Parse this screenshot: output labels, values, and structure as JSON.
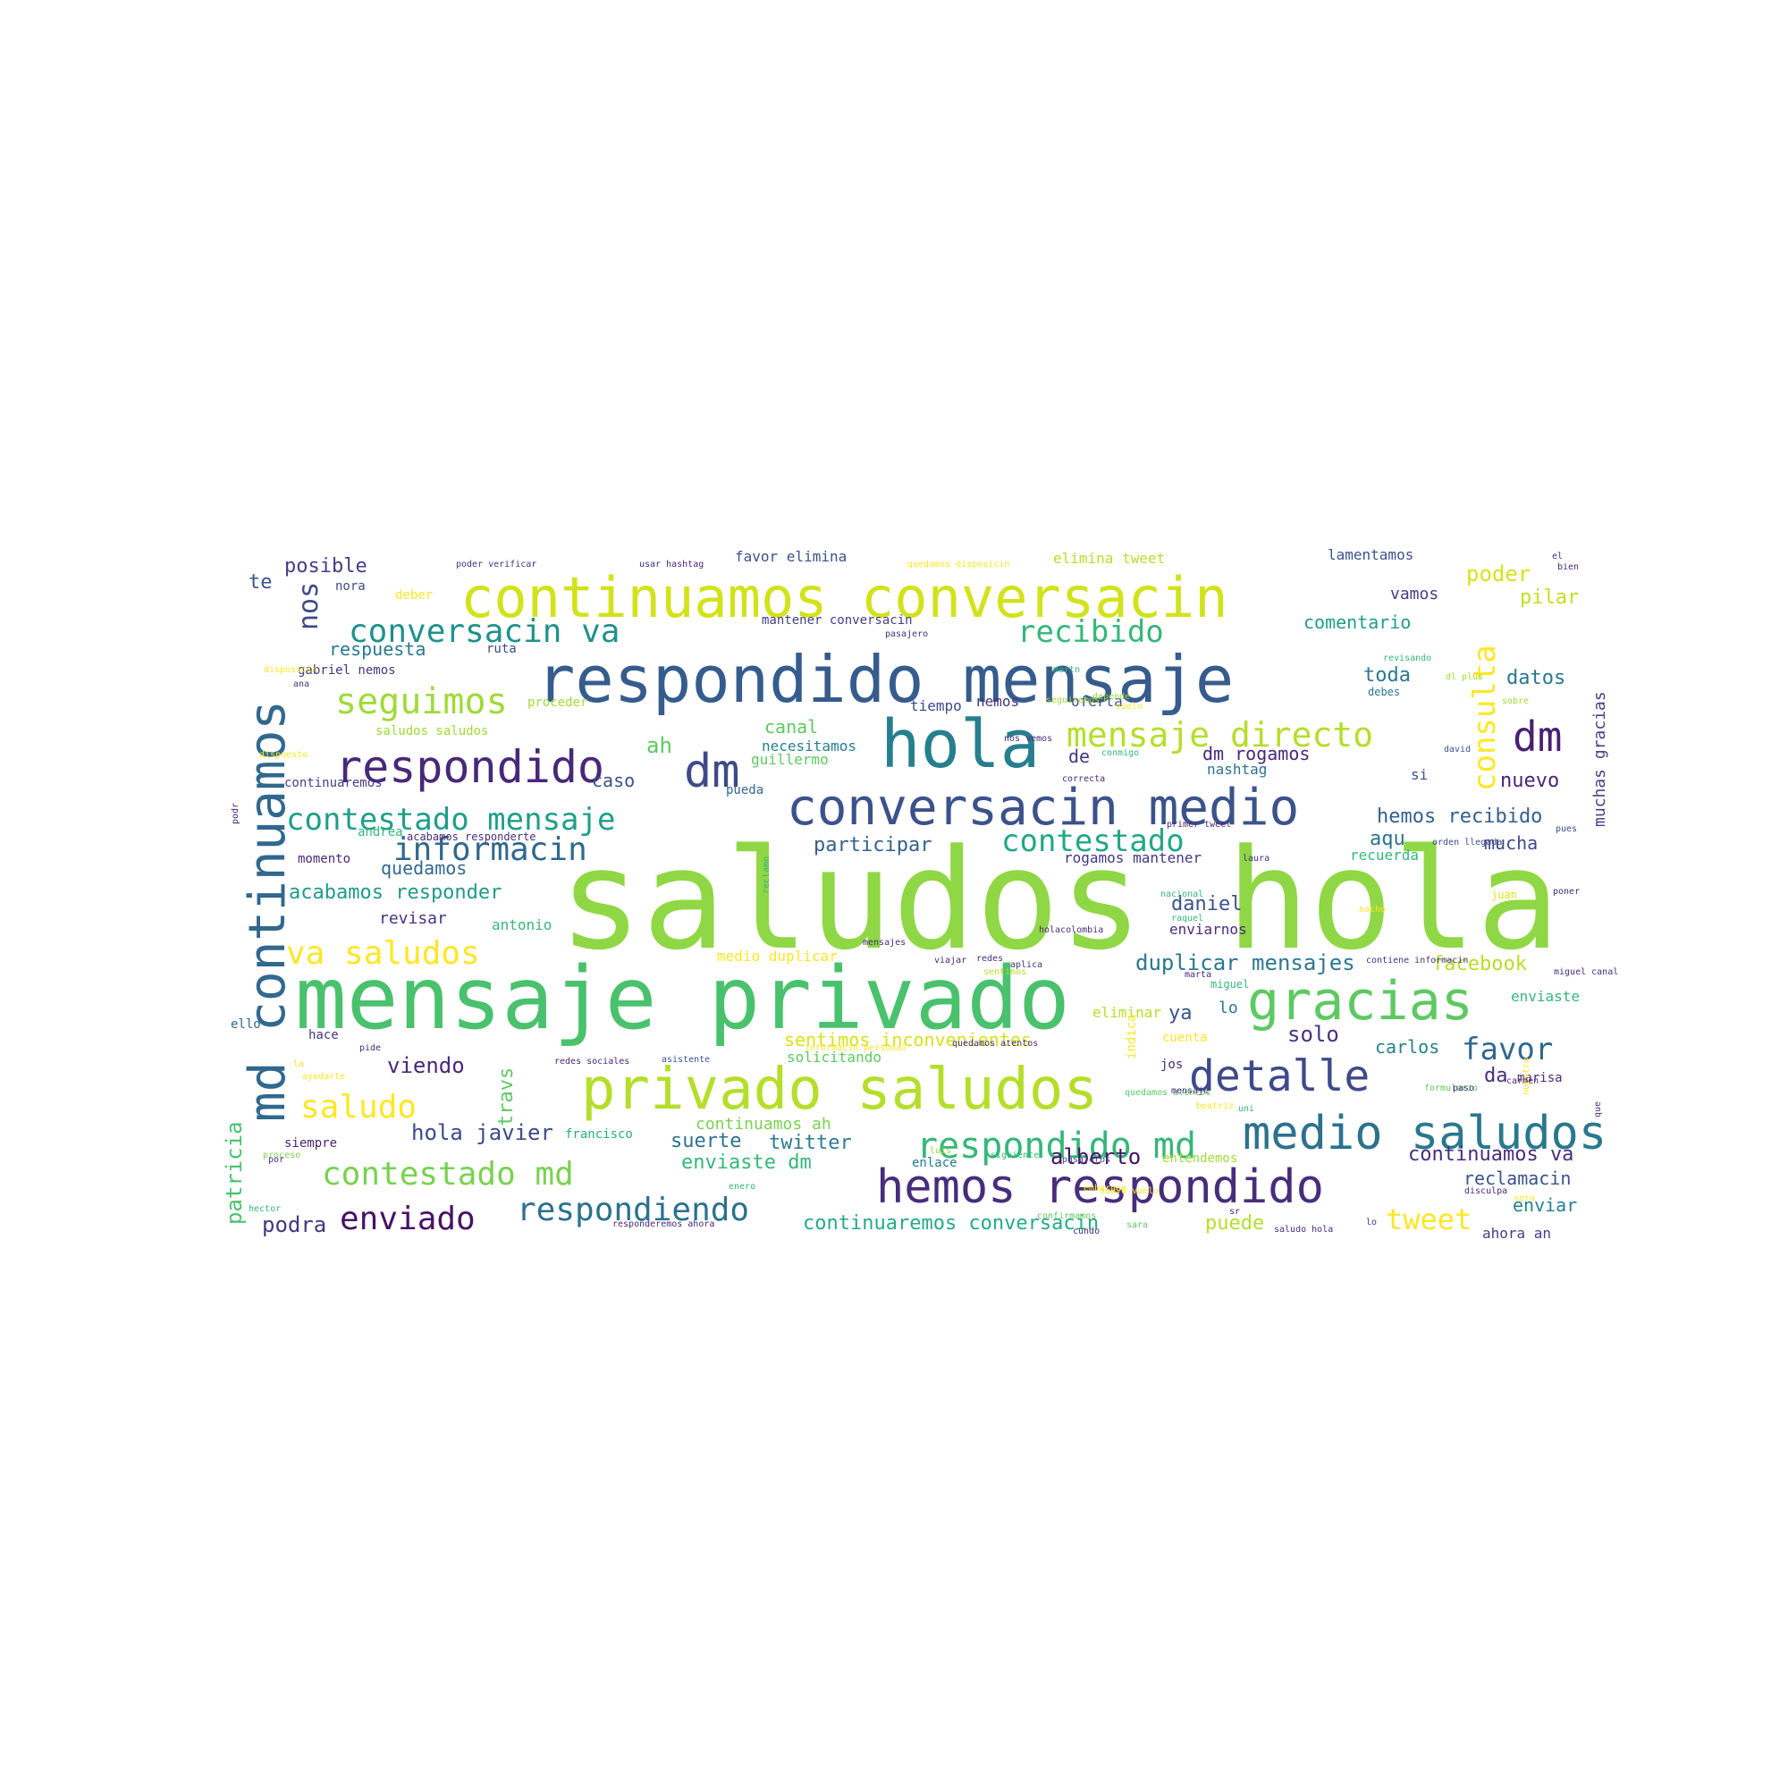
{
  "palette": {
    "dark_purple": "#46327e",
    "blue": "#365c8d",
    "teal_blue": "#277f8e",
    "teal": "#1fa187",
    "green": "#4ac16d",
    "lime": "#a0da39",
    "yellow": "#fde725"
  },
  "words": [
    {
      "text": "saludos hola",
      "color": "#8fd744"
    },
    {
      "text": "mensaje privado",
      "color": "#4ac16d"
    },
    {
      "text": "respondido mensaje",
      "color": "#365c8d"
    },
    {
      "text": "continuamos conversacin",
      "color": "#d2e21b"
    },
    {
      "text": "hola",
      "color": "#277f8e"
    },
    {
      "text": "md continuamos",
      "color": "#31688e"
    },
    {
      "text": "privado saludos",
      "color": "#b5de2b"
    },
    {
      "text": "conversacin medio",
      "color": "#3b528b"
    },
    {
      "text": "hemos respondido",
      "color": "#472d7b"
    },
    {
      "text": "respondido",
      "color": "#482878"
    },
    {
      "text": "dm",
      "color": "#3e4a89"
    },
    {
      "text": "gracias",
      "color": "#5ec962"
    },
    {
      "text": "detalle",
      "color": "#3e4a89"
    },
    {
      "text": "medio",
      "color": "#2c728e"
    },
    {
      "text": "saludos",
      "color": "#2a788e"
    },
    {
      "text": "dm",
      "color": "#482173"
    },
    {
      "text": "respondido md",
      "color": "#35b779"
    },
    {
      "text": "seguimos",
      "color": "#a0da39"
    },
    {
      "text": "conversacin va",
      "color": "#21918c"
    },
    {
      "text": "mensaje directo",
      "color": "#b5de2b"
    },
    {
      "text": "recibido",
      "color": "#35b779"
    },
    {
      "text": "contestado mensaje",
      "color": "#1f9e89"
    },
    {
      "text": "informacin",
      "color": "#31688e"
    },
    {
      "text": "contestado",
      "color": "#22a884"
    },
    {
      "text": "consulta",
      "color": "#fde725"
    },
    {
      "text": "va saludos",
      "color": "#fde725"
    },
    {
      "text": "saludo",
      "color": "#fde725"
    },
    {
      "text": "contestado md",
      "color": "#7ad151"
    },
    {
      "text": "enviado",
      "color": "#471365"
    },
    {
      "text": "respondiendo",
      "color": "#2c728e"
    },
    {
      "text": "favor",
      "color": "#31688e"
    },
    {
      "text": "nos",
      "color": "#3e4a89"
    },
    {
      "text": "tweet",
      "color": "#fde725"
    },
    {
      "text": "duplicar mensajes",
      "color": "#2a788e"
    },
    {
      "text": "hemos recibido",
      "color": "#355f8d"
    },
    {
      "text": "continuamos va",
      "color": "#472d7b"
    },
    {
      "text": "comentario",
      "color": "#1f9e89"
    },
    {
      "text": "datos",
      "color": "#2a788e"
    },
    {
      "text": "pilar",
      "color": "#c2df23"
    },
    {
      "text": "poder",
      "color": "#d8e219"
    },
    {
      "text": "nuevo",
      "color": "#482475"
    },
    {
      "text": "posible",
      "color": "#433e85"
    },
    {
      "text": "te",
      "color": "#3b528b"
    },
    {
      "text": "respuesta",
      "color": "#2a788e"
    },
    {
      "text": "participar",
      "color": "#34618d"
    },
    {
      "text": "acabamos responder",
      "color": "#1f9a8a"
    },
    {
      "text": "quedamos",
      "color": "#31688e"
    },
    {
      "text": "revisar",
      "color": "#463480"
    },
    {
      "text": "daniel",
      "color": "#3b528b"
    },
    {
      "text": "canal",
      "color": "#5ec962"
    },
    {
      "text": "caso",
      "color": "#3b528b"
    },
    {
      "text": "hola javier",
      "color": "#3e4a89"
    },
    {
      "text": "suerte",
      "color": "#2c728e"
    },
    {
      "text": "twitter",
      "color": "#287d8e"
    },
    {
      "text": "alberto",
      "color": "#471365"
    },
    {
      "text": "enviaste dm",
      "color": "#35b779"
    },
    {
      "text": "podra",
      "color": "#453781"
    },
    {
      "text": "continuaremos conversacin",
      "color": "#25ab82"
    },
    {
      "text": "puede",
      "color": "#b5de2b"
    },
    {
      "text": "enviar",
      "color": "#277f8e"
    },
    {
      "text": "reclamacin",
      "color": "#3b528b"
    },
    {
      "text": "solo",
      "color": "#46327e"
    },
    {
      "text": "carlos",
      "color": "#27808e"
    },
    {
      "text": "viendo",
      "color": "#482878"
    },
    {
      "text": "ya",
      "color": "#3b528b"
    },
    {
      "text": "lo",
      "color": "#2a788e"
    },
    {
      "text": "da",
      "color": "#472d7b"
    },
    {
      "text": "aqu",
      "color": "#2c728e"
    },
    {
      "text": "mucha",
      "color": "#3e4a89"
    },
    {
      "text": "patricia",
      "color": "#4ac16d"
    },
    {
      "text": "travs",
      "color": "#5ec962"
    },
    {
      "text": "facebook",
      "color": "#b5de2b"
    },
    {
      "text": "toda",
      "color": "#2a788e"
    },
    {
      "text": "sentimos inconvenientes",
      "color": "#d8e219"
    },
    {
      "text": "muchas gracias",
      "color": "#414487"
    },
    {
      "text": "dm rogamos",
      "color": "#482878"
    },
    {
      "text": "de",
      "color": "#453781"
    },
    {
      "text": "ah",
      "color": "#5ec962"
    },
    {
      "text": "necesitamos",
      "color": "#277f8e"
    },
    {
      "text": "guillermo",
      "color": "#5ec962"
    },
    {
      "text": "recuerda",
      "color": "#35b779"
    },
    {
      "text": "enviarnos",
      "color": "#472d7b"
    },
    {
      "text": "antonio",
      "color": "#35b779"
    },
    {
      "text": "eliminar",
      "color": "#b5de2b"
    },
    {
      "text": "vamos",
      "color": "#433e85"
    },
    {
      "text": "tiempo",
      "color": "#3e4a89"
    },
    {
      "text": "oferta",
      "color": "#3b528b"
    },
    {
      "text": "nemos",
      "color": "#46327e"
    },
    {
      "text": "ruta",
      "color": "#3e4a89"
    },
    {
      "text": "momento",
      "color": "#482878"
    },
    {
      "text": "pueda",
      "color": "#31688e"
    },
    {
      "text": "debes",
      "color": "#2a788e"
    },
    {
      "text": "si",
      "color": "#3b528b"
    },
    {
      "text": "gabriel nemos",
      "color": "#453781"
    },
    {
      "text": "nora",
      "color": "#3e4a89"
    },
    {
      "text": "deber",
      "color": "#fde725"
    },
    {
      "text": "nashtag",
      "color": "#2c728e"
    },
    {
      "text": "proceder",
      "color": "#a0da39"
    },
    {
      "text": "cuenta",
      "color": "#fde725"
    },
    {
      "text": "miguel",
      "color": "#35b779"
    },
    {
      "text": "jos",
      "color": "#482878"
    },
    {
      "text": "solicitando",
      "color": "#5ec962"
    },
    {
      "text": "indica",
      "color": "#fde725"
    },
    {
      "text": "enviaste",
      "color": "#35b779"
    },
    {
      "text": "marisa",
      "color": "#472d7b"
    },
    {
      "text": "entendemos",
      "color": "#a0da39"
    },
    {
      "text": "continuamos ah",
      "color": "#7ad151"
    },
    {
      "text": "siempre",
      "color": "#482878"
    },
    {
      "text": "francisco",
      "color": "#27ad81"
    },
    {
      "text": "enlace",
      "color": "#2a788e"
    },
    {
      "text": "ello",
      "color": "#31688e"
    },
    {
      "text": "hace",
      "color": "#453781"
    },
    {
      "text": "andrea",
      "color": "#35b779"
    },
    {
      "text": "juan",
      "color": "#d8e219"
    },
    {
      "text": "laura",
      "color": "#472d7b"
    },
    {
      "text": "ahora an",
      "color": "#433e85"
    },
    {
      "text": "rogamos mantener",
      "color": "#453781"
    },
    {
      "text": "mantener conversacin",
      "color": "#433e85"
    },
    {
      "text": "saludos saludos",
      "color": "#a0da39"
    },
    {
      "text": "acabamos responderte",
      "color": "#472d7b"
    },
    {
      "text": "continuaremos",
      "color": "#433e85"
    },
    {
      "text": "poder verificar",
      "color": "#46327e"
    },
    {
      "text": "usar hashtag",
      "color": "#482878"
    },
    {
      "text": "favor elimina",
      "color": "#3b528b"
    },
    {
      "text": "quedamos disposicin",
      "color": "#fde725"
    },
    {
      "text": "elimina tweet",
      "color": "#b5de2b"
    },
    {
      "text": "lamentamos",
      "color": "#3b528b"
    },
    {
      "text": "pasajero",
      "color": "#472d7b"
    },
    {
      "text": "seguiremos",
      "color": "#a0da39"
    },
    {
      "text": "medio duplicar",
      "color": "#fde725"
    },
    {
      "text": "responderemos ahora",
      "color": "#482878"
    },
    {
      "text": "saludo hola",
      "color": "#472d7b"
    },
    {
      "text": "pide",
      "color": "#482878"
    },
    {
      "text": "redes sociales",
      "color": "#482878"
    },
    {
      "text": "asistente",
      "color": "#3b528b"
    },
    {
      "text": "orden llegada",
      "color": "#3e4a89"
    },
    {
      "text": "formulario",
      "color": "#5ec962"
    },
    {
      "text": "viajar",
      "color": "#482878"
    },
    {
      "text": "proceso",
      "color": "#7ad151"
    },
    {
      "text": "ayudarte",
      "color": "#fde725"
    },
    {
      "text": "lo",
      "color": "#482878"
    },
    {
      "text": "ana",
      "color": "#453781"
    },
    {
      "text": "martn",
      "color": "#35b779"
    },
    {
      "text": "primer tweet",
      "color": "#482878"
    },
    {
      "text": "depende",
      "color": "#a0da39"
    },
    {
      "text": "sentimos",
      "color": "#b5de2b"
    },
    {
      "text": "contiene informacin",
      "color": "#46327e"
    },
    {
      "text": "siguiente",
      "color": "#35b779"
    },
    {
      "text": "mensajes",
      "color": "#472d7b"
    },
    {
      "text": "aplica",
      "color": "#46327e"
    },
    {
      "text": "confirmamos",
      "color": "#5ec962"
    },
    {
      "text": "informacin personal",
      "color": "#fde725"
    },
    {
      "text": "quedamos atentos",
      "color": "#482878"
    },
    {
      "text": "enero",
      "color": "#35b779"
    },
    {
      "text": "holacolombia",
      "color": "#472d7b"
    },
    {
      "text": "correcta",
      "color": "#482878"
    },
    {
      "text": "nos vemos",
      "color": "#482878"
    },
    {
      "text": "conmigo",
      "color": "#35b779"
    },
    {
      "text": "podr",
      "color": "#482878"
    },
    {
      "text": "reclamo",
      "color": "#35b779"
    },
    {
      "text": "david",
      "color": "#3b528b"
    },
    {
      "text": "sobre",
      "color": "#a0da39"
    },
    {
      "text": "bien",
      "color": "#482878"
    },
    {
      "text": "pues",
      "color": "#3e4a89"
    },
    {
      "text": "poner",
      "color": "#472d7b"
    },
    {
      "text": "miguel canal",
      "color": "#472d7b"
    },
    {
      "text": "disculpa",
      "color": "#482878"
    },
    {
      "text": "sera",
      "color": "#fde725"
    },
    {
      "text": "dl plus",
      "color": "#a0da39"
    },
    {
      "text": "revisando",
      "color": "#35b779"
    },
    {
      "text": "paso",
      "color": "#472d7b"
    },
    {
      "text": "cundo",
      "color": "#482878"
    },
    {
      "text": "disposicin",
      "color": "#fde725"
    },
    {
      "text": "embarque",
      "color": "#fde725"
    },
    {
      "text": "pasajeros",
      "color": "#3e4a89"
    },
    {
      "text": "sr",
      "color": "#482878"
    },
    {
      "text": "dispuesto",
      "color": "#fde725"
    },
    {
      "text": "la",
      "color": "#fde725"
    },
    {
      "text": "por",
      "color": "#472d7b"
    },
    {
      "text": "hector",
      "color": "#35b779"
    },
    {
      "text": "carmen",
      "color": "#482878"
    },
    {
      "text": "nuestro",
      "color": "#fde725"
    },
    {
      "text": "que",
      "color": "#472d7b"
    },
    {
      "text": "el",
      "color": "#472d7b"
    },
    {
      "text": "vuelo",
      "color": "#fde725"
    },
    {
      "text": "sara",
      "color": "#5ec962"
    },
    {
      "text": "nuevo vuelo",
      "color": "#fde725"
    },
    {
      "text": "nacional",
      "color": "#35b779"
    },
    {
      "text": "redes",
      "color": "#472d7b"
    },
    {
      "text": "quedamos atentos",
      "color": "#5ec962"
    },
    {
      "text": "uni",
      "color": "#35b779"
    },
    {
      "text": "beatriz",
      "color": "#fde725"
    },
    {
      "text": "luis",
      "color": "#a0da39"
    },
    {
      "text": "raquel",
      "color": "#35b779"
    },
    {
      "text": "nacho",
      "color": "#fde725"
    },
    {
      "text": "mensaje",
      "color": "#472d7b"
    },
    {
      "text": "marta",
      "color": "#482878"
    }
  ]
}
